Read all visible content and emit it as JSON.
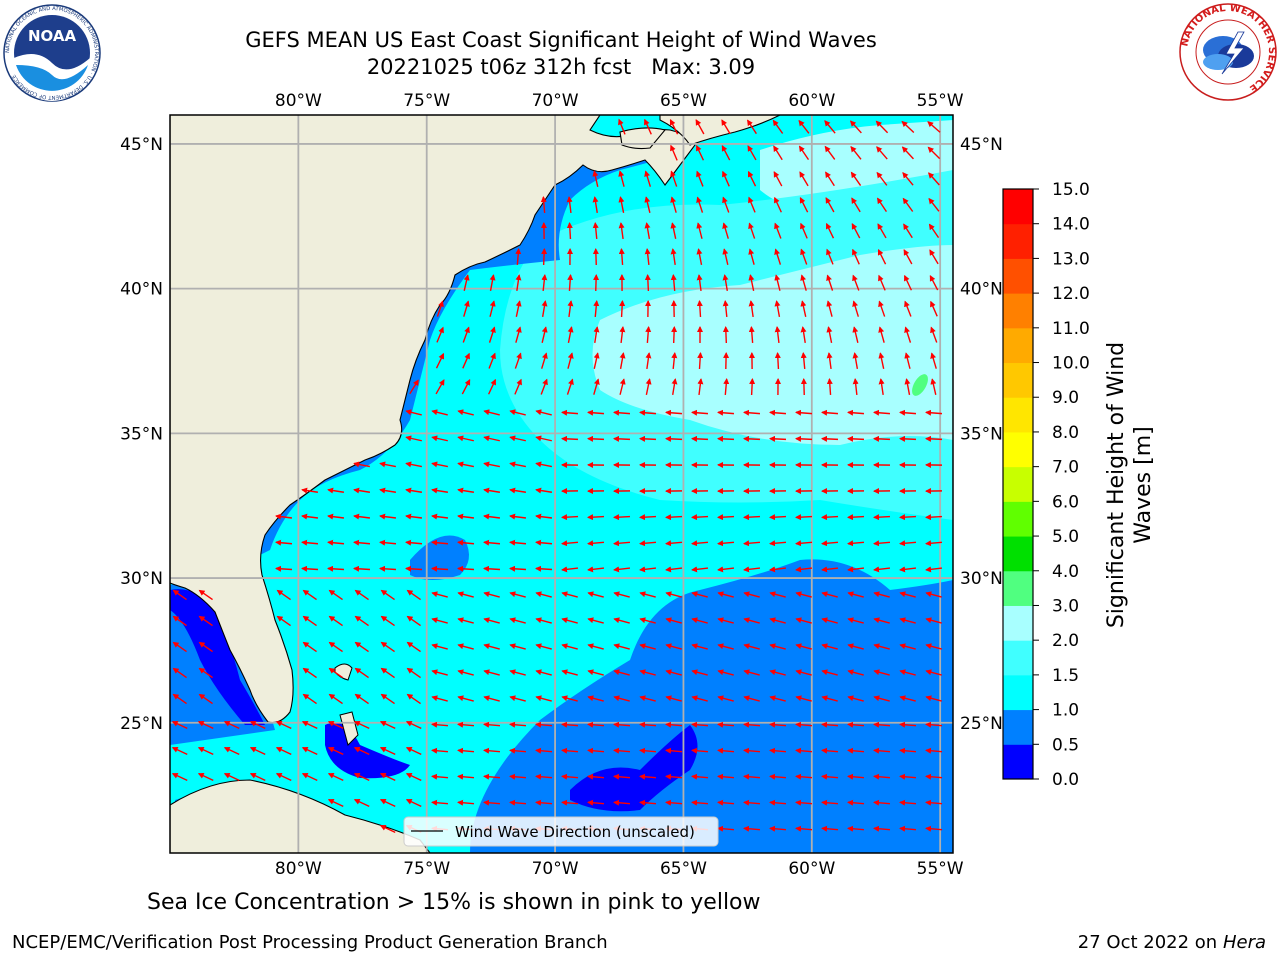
{
  "title": {
    "line1": "GEFS MEAN US East Coast Significant Height of Wind Waves",
    "line2": "20221025 t06z 312h fcst   Max: 3.09"
  },
  "map": {
    "lon_range": [
      -85,
      -54.5
    ],
    "lat_range": [
      20.5,
      46
    ],
    "lon_ticks": [
      "80°W",
      "75°W",
      "70°W",
      "65°W",
      "60°W",
      "55°W"
    ],
    "lat_ticks": [
      "45°N",
      "40°N",
      "35°N",
      "30°N",
      "25°N"
    ],
    "gridlines": true,
    "land_color": "#efeedc"
  },
  "legend": {
    "label": "Wind Wave Direction (unscaled)",
    "arrow_color": "#ff0000"
  },
  "colorbar": {
    "label": "Significant Height of Wind Waves [m]",
    "unit": "m",
    "ticks": [
      "0.0",
      "0.5",
      "1.0",
      "1.5",
      "2.0",
      "3.0",
      "4.0",
      "5.0",
      "6.0",
      "7.0",
      "8.0",
      "9.0",
      "10.0",
      "11.0",
      "12.0",
      "13.0",
      "14.0",
      "15.0"
    ],
    "colors": [
      "#0000ff",
      "#0080ff",
      "#00ffff",
      "#40ffff",
      "#a8ffff",
      "#50ff80",
      "#00e000",
      "#60ff00",
      "#c8ff00",
      "#ffff00",
      "#ffe600",
      "#ffc800",
      "#ffaa00",
      "#ff8000",
      "#ff5000",
      "#ff2000",
      "#ff0000"
    ]
  },
  "chart_data": {
    "type": "heatmap",
    "variable": "Significant Height of Wind Waves",
    "max_value": 3.09,
    "levels": [
      0.0,
      0.5,
      1.0,
      1.5,
      2.0,
      3.0,
      4.0,
      5.0,
      6.0,
      7.0,
      8.0,
      9.0,
      10.0,
      11.0,
      12.0,
      13.0,
      14.0,
      15.0
    ]
  },
  "ice_note": "Sea Ice Concentration > 15% is shown in pink to yellow",
  "footer": {
    "left": "NCEP/EMC/Verification Post Processing Product Generation Branch",
    "right_date": "27 Oct 2022 on ",
    "right_host": "Hera"
  },
  "logos": {
    "noaa": "NOAA",
    "noaa_ring": "NATIONAL OCEANIC AND ATMOSPHERIC ADMINISTRATION · U.S. DEPARTMENT OF COMMERCE",
    "nws_ring": "NATIONAL WEATHER SERVICE"
  }
}
